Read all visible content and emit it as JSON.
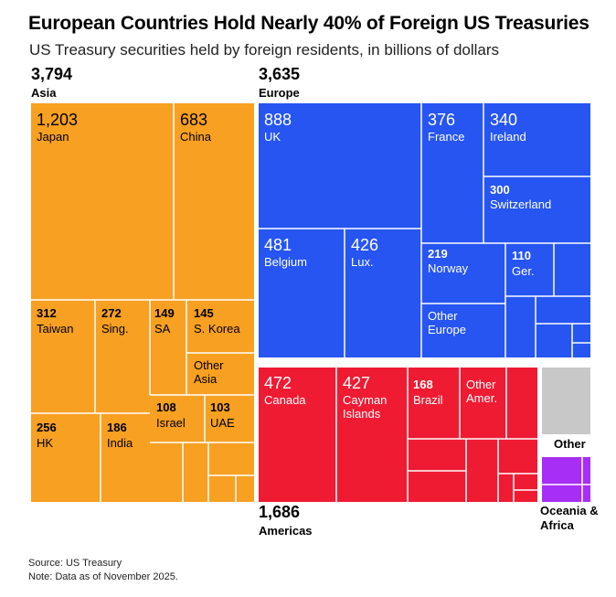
{
  "title": "European Countries Hold Nearly 40% of Foreign US Treasuries",
  "subtitle": "US Treasury securities held by foreign residents, in billions of dollars",
  "footer": {
    "source": "Source: US Treasury",
    "note": "Note: Data as of November 2025."
  },
  "colors": {
    "asia": "#F7A022",
    "europe": "#2655F2",
    "americas": "#EE1B33",
    "other": "#C8C8C8",
    "oceania_africa": "#A62EF5",
    "divider": "#ffffff",
    "label_on_dark": "#ffffff",
    "label_on_light": "#000000"
  },
  "chart_data": {
    "type": "treemap",
    "units": "billions of US dollars",
    "groups": [
      {
        "key": "asia",
        "name": "Asia",
        "value": "3,794",
        "items": [
          {
            "key": "japan",
            "name": "Japan",
            "value": "1,203"
          },
          {
            "key": "china",
            "name": "China",
            "value": "683"
          },
          {
            "key": "taiwan",
            "name": "Taiwan",
            "value": "312"
          },
          {
            "key": "singapore",
            "name": "Sing.",
            "value": "272"
          },
          {
            "key": "saudi-arabia",
            "name": "SA",
            "value": "149"
          },
          {
            "key": "south-korea",
            "name": "S. Korea",
            "value": "145"
          },
          {
            "key": "other-asia",
            "name": "Other Asia",
            "value": ""
          },
          {
            "key": "hong-kong",
            "name": "HK",
            "value": "256"
          },
          {
            "key": "india",
            "name": "India",
            "value": "186"
          },
          {
            "key": "israel",
            "name": "Israel",
            "value": "108"
          },
          {
            "key": "uae",
            "name": "UAE",
            "value": "103"
          }
        ]
      },
      {
        "key": "europe",
        "name": "Europe",
        "value": "3,635",
        "items": [
          {
            "key": "uk",
            "name": "UK",
            "value": "888"
          },
          {
            "key": "france",
            "name": "France",
            "value": "376"
          },
          {
            "key": "ireland",
            "name": "Ireland",
            "value": "340"
          },
          {
            "key": "switzerland",
            "name": "Switzerland",
            "value": "300"
          },
          {
            "key": "belgium",
            "name": "Belgium",
            "value": "481"
          },
          {
            "key": "luxembourg",
            "name": "Lux.",
            "value": "426"
          },
          {
            "key": "norway",
            "name": "Norway",
            "value": "219"
          },
          {
            "key": "germany",
            "name": "Ger.",
            "value": "110"
          },
          {
            "key": "other-europe",
            "name": "Other Europe",
            "value": ""
          }
        ]
      },
      {
        "key": "americas",
        "name": "Americas",
        "value": "1,686",
        "items": [
          {
            "key": "canada",
            "name": "Canada",
            "value": "472"
          },
          {
            "key": "cayman-islands",
            "name": "Cayman Islands",
            "value": "427"
          },
          {
            "key": "brazil",
            "name": "Brazil",
            "value": "168"
          },
          {
            "key": "other-americas",
            "name": "Other Amer.",
            "value": ""
          }
        ]
      },
      {
        "key": "other",
        "name": "Other",
        "value": "",
        "items": []
      },
      {
        "key": "oceania-africa",
        "name": "Oceania & Africa",
        "value": "",
        "items": []
      }
    ]
  }
}
